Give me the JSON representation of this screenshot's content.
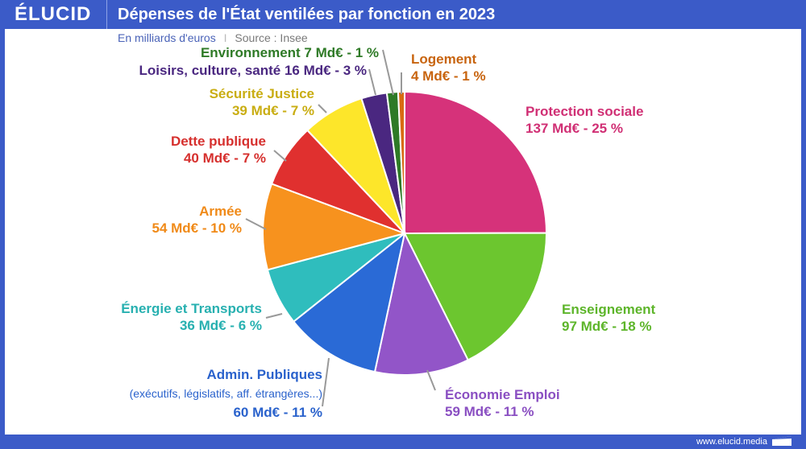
{
  "header": {
    "logo": "ÉLUCID",
    "title": "Dépenses de l'État ventilées par fonction en 2023"
  },
  "subtitle": {
    "unit": "En milliards d'euros",
    "separator": "I",
    "source": "Source : Insee"
  },
  "footer": {
    "url": "www.elucid.media"
  },
  "chart_data": {
    "type": "pie",
    "title": "Dépenses de l'État ventilées par fonction en 2023",
    "unit": "Md€",
    "start": "top",
    "direction": "clockwise",
    "slices": [
      {
        "name": "Protection sociale",
        "value": 137,
        "percent": 25,
        "label": "137 Md€ - 25 %",
        "color": "#d6327a",
        "text_color": "#d02f74"
      },
      {
        "name": "Enseignement",
        "value": 97,
        "percent": 18,
        "label": "97 Md€ - 18 %",
        "color": "#6cc62f",
        "text_color": "#5db52a"
      },
      {
        "name": "Économie Emploi",
        "value": 59,
        "percent": 11,
        "label": "59 Md€ - 11 %",
        "color": "#9255c8",
        "text_color": "#8a4fc2"
      },
      {
        "name": "Admin. Publiques",
        "note": "(exécutifs, législatifs, aff. étrangères...)",
        "value": 60,
        "percent": 11,
        "label": "60 Md€ - 11 %",
        "color": "#2a6ad6",
        "text_color": "#2a62cc"
      },
      {
        "name": "Énergie et Transports",
        "value": 36,
        "percent": 6,
        "label": "36 Md€ - 6 %",
        "color": "#2fbdbd",
        "text_color": "#27b0b0"
      },
      {
        "name": "Armée",
        "value": 54,
        "percent": 10,
        "label": "54 Md€ - 10 %",
        "color": "#f7921e",
        "text_color": "#f08a18"
      },
      {
        "name": "Dette publique",
        "value": 40,
        "percent": 7,
        "label": "40 Md€ - 7 %",
        "color": "#e0302f",
        "text_color": "#d6302e"
      },
      {
        "name": "Sécurité Justice",
        "value": 39,
        "percent": 7,
        "label": "39 Md€ - 7 %",
        "color": "#fde62a",
        "text_color": "#c9ad12"
      },
      {
        "name": "Loisirs, culture, santé",
        "value": 16,
        "percent": 3,
        "label": "16 Md€ - 3 %",
        "color": "#4a2780",
        "text_color": "#4a2780"
      },
      {
        "name": "Environnement",
        "value": 7,
        "percent": 1,
        "label": "7 Md€ - 1 %",
        "color": "#2e7a26",
        "text_color": "#2e7a26"
      },
      {
        "name": "Logement",
        "value": 4,
        "percent": 1,
        "label": "4 Md€ - 1 %",
        "color": "#d86b12",
        "text_color": "#c8640f"
      }
    ]
  }
}
